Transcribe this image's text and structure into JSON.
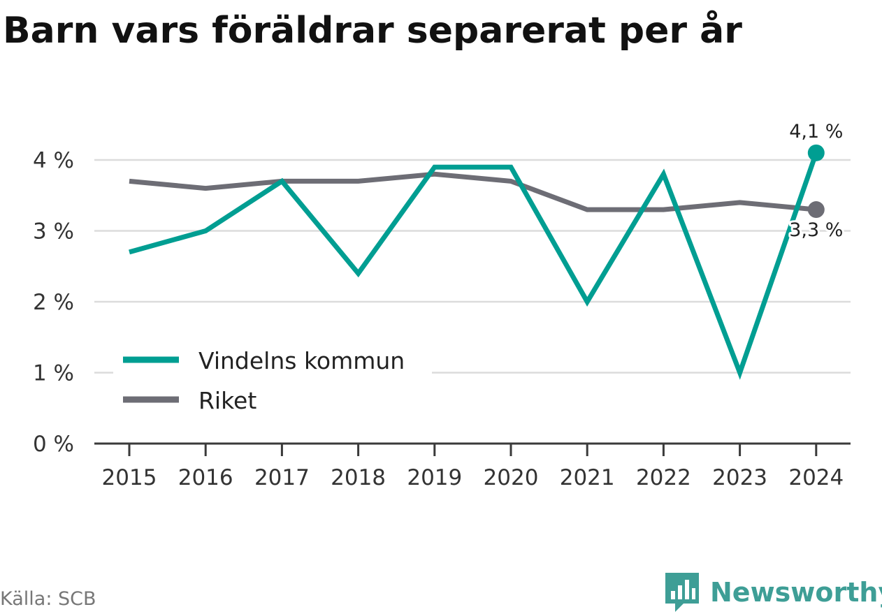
{
  "title": "Barn vars föräldrar separerat per år",
  "source": "Källa: SCB",
  "brand": "Newsworthy",
  "colors": {
    "vindeln": "#009e92",
    "riket": "#6d6d75",
    "grid": "#dcdcdc",
    "axis": "#3a3a3a",
    "brand": "#3e9e96"
  },
  "chart_data": {
    "type": "line",
    "title": "Barn vars föräldrar separerat per år",
    "xlabel": "",
    "ylabel": "",
    "categories": [
      "2015",
      "2016",
      "2017",
      "2018",
      "2019",
      "2020",
      "2021",
      "2022",
      "2023",
      "2024"
    ],
    "series": [
      {
        "name": "Vindelns kommun",
        "color": "#009e92",
        "values": [
          2.7,
          3.0,
          3.7,
          2.4,
          3.9,
          3.9,
          2.0,
          3.8,
          1.0,
          4.1
        ],
        "end_label": "4,1 %"
      },
      {
        "name": "Riket",
        "color": "#6d6d75",
        "values": [
          3.7,
          3.6,
          3.7,
          3.7,
          3.8,
          3.7,
          3.3,
          3.3,
          3.4,
          3.3
        ],
        "end_label": "3,3 %"
      }
    ],
    "yticks": [
      0,
      1,
      2,
      3,
      4
    ],
    "ytick_labels": [
      "0 %",
      "1 %",
      "2 %",
      "3 %",
      "4 %"
    ],
    "ylim": [
      0,
      4.1
    ],
    "grid": true,
    "legend_position": "bottom-left"
  }
}
